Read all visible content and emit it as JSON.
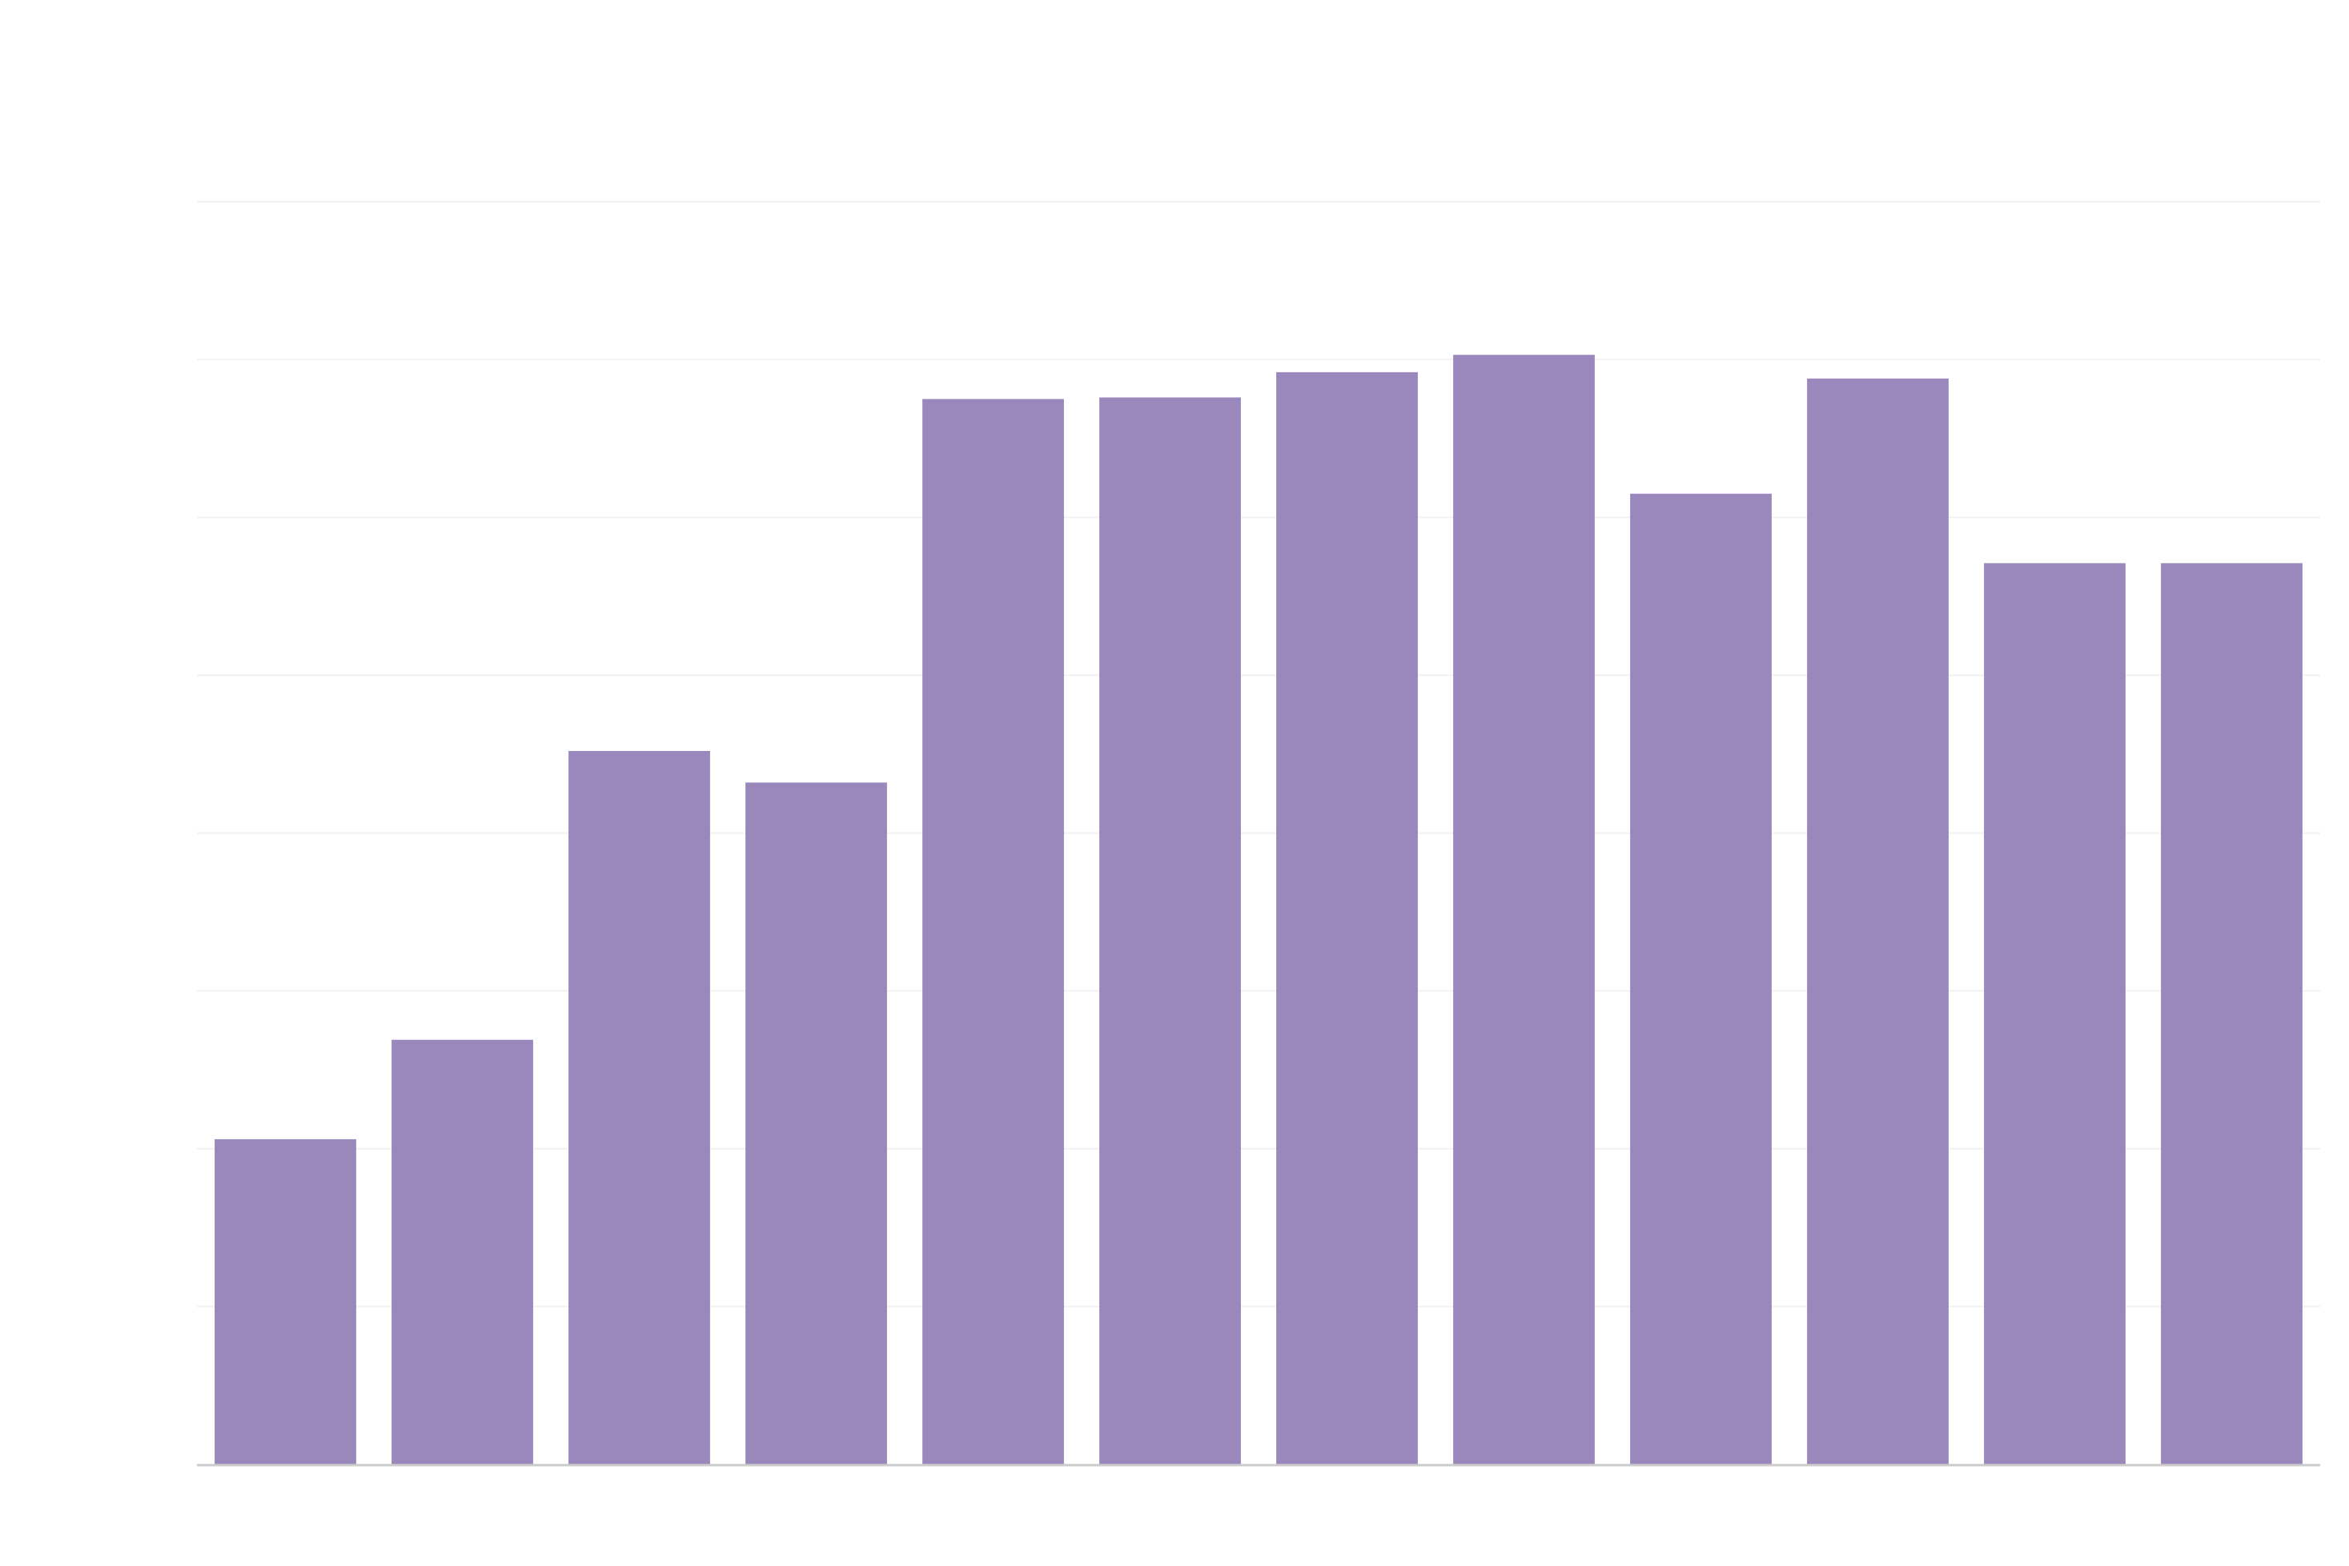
{
  "chart_data": {
    "type": "bar",
    "title": "",
    "xlabel": "",
    "ylabel": "",
    "categories": [
      "",
      "",
      "",
      "",
      "",
      "",
      "",
      "",
      "",
      "",
      "",
      ""
    ],
    "values": [
      2.06,
      2.69,
      4.52,
      4.32,
      6.75,
      6.76,
      6.92,
      7.03,
      6.15,
      6.88,
      5.71,
      5.71
    ],
    "ylim": [
      0,
      8
    ],
    "y_gridlines": [
      1,
      2,
      3,
      4,
      5,
      6,
      7,
      8
    ],
    "grid": true,
    "legend": "none",
    "colors": {
      "bar": "#9a88bd",
      "grid": "#f2f2f2",
      "axis": "#cccccc",
      "background": "#ffffff"
    }
  }
}
